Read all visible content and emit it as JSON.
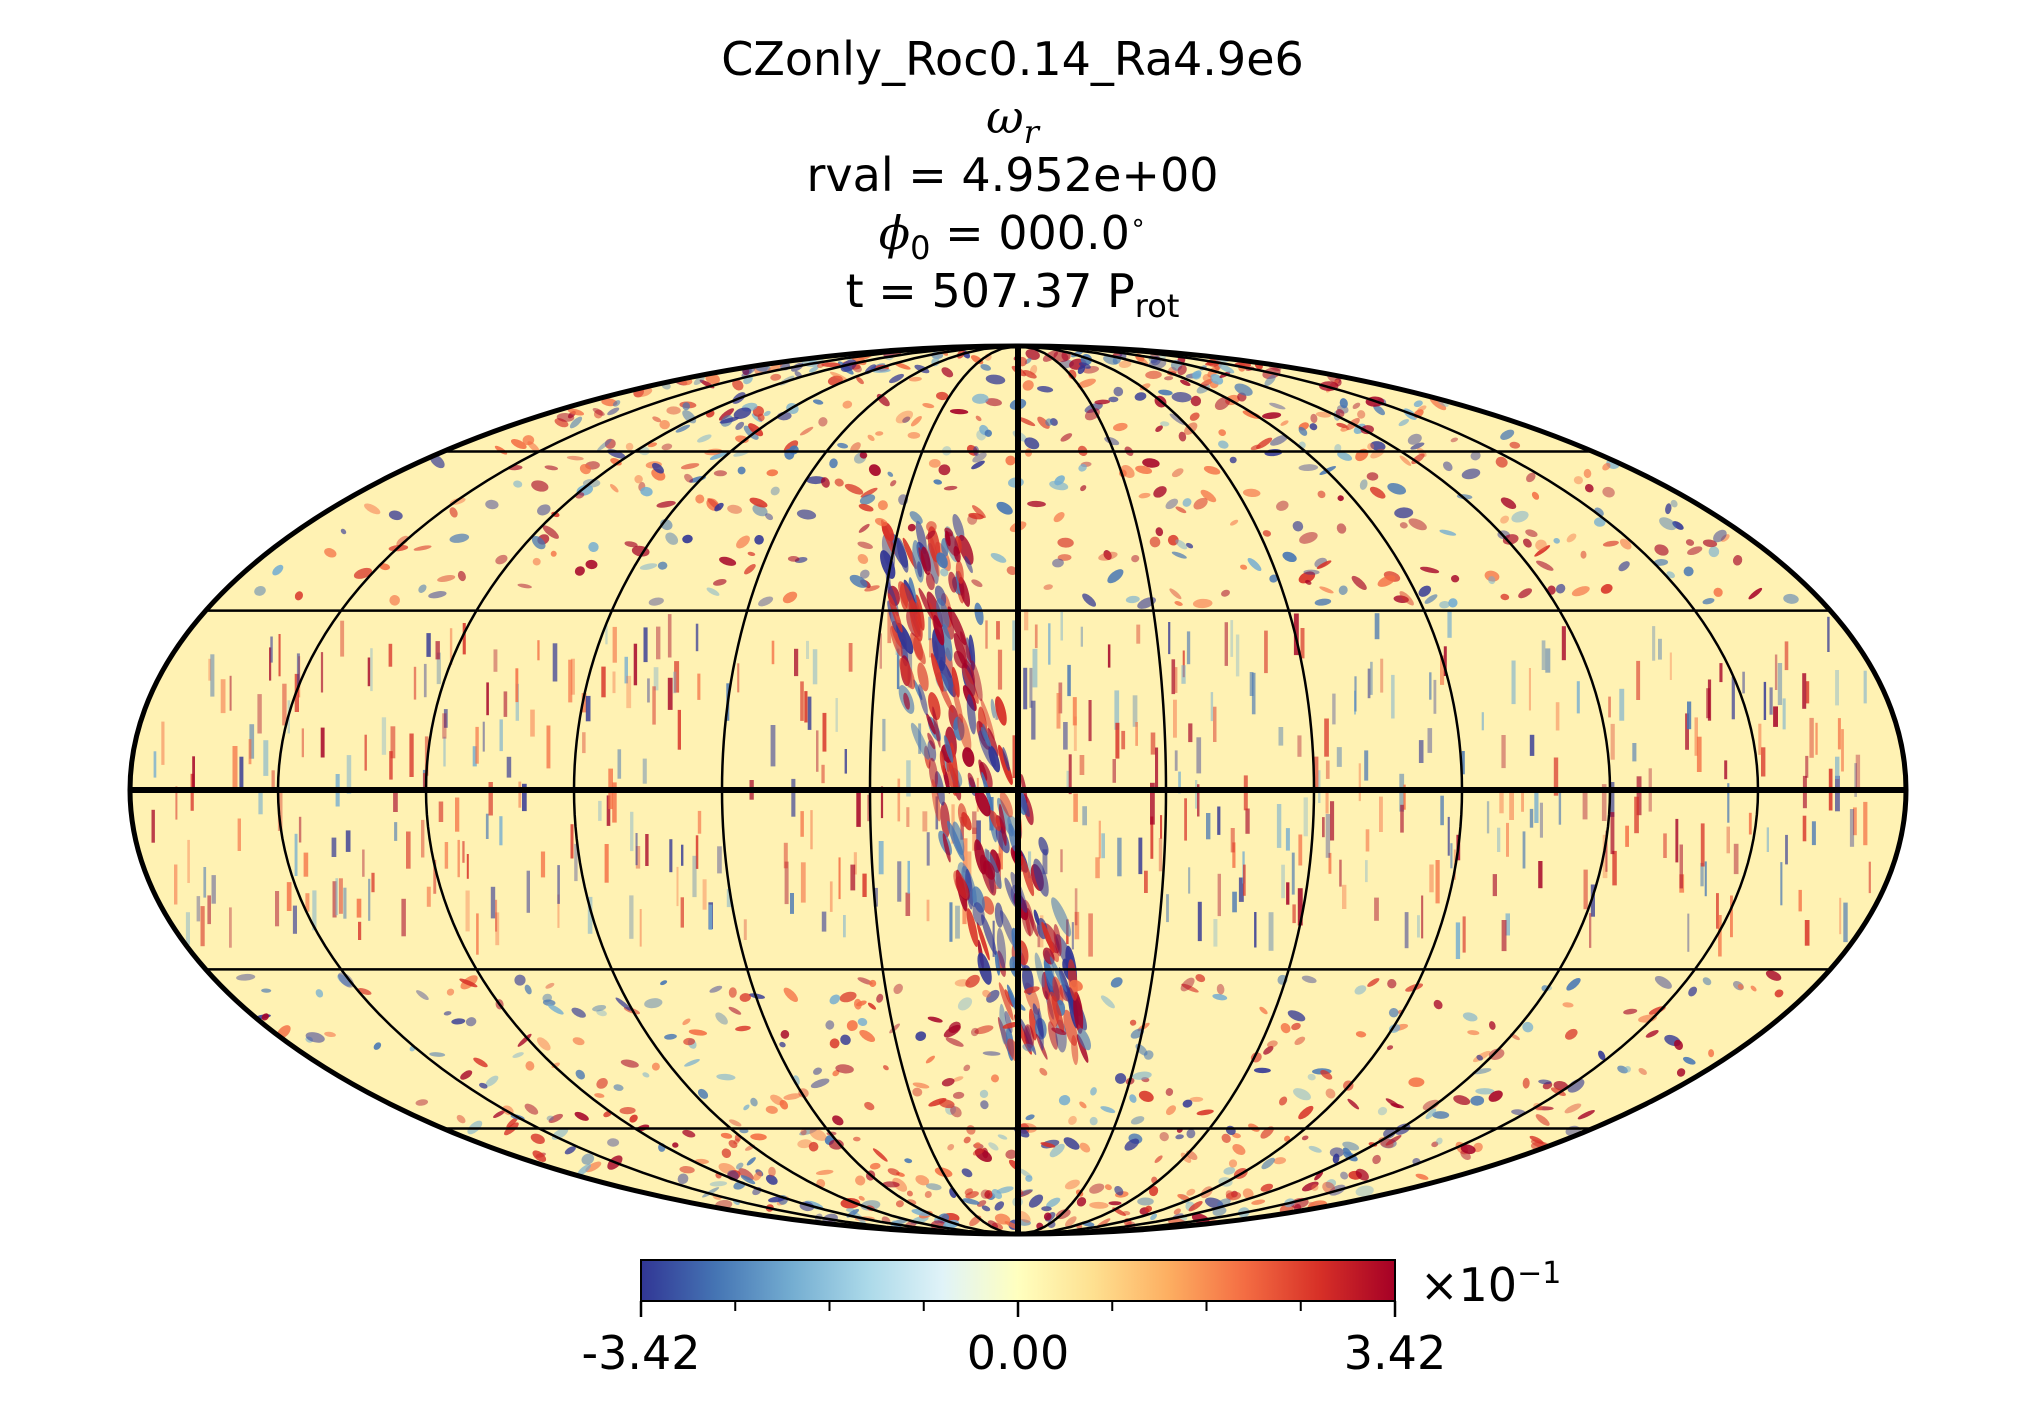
{
  "title": {
    "run_name": "CZonly_Roc0.14_Ra4.9e6",
    "quantity_symbol": "ω",
    "quantity_subscript": "r",
    "rval_text": "rval = 4.952e+00",
    "phi_symbol": "ϕ",
    "phi_subscript": "0",
    "phi_value_text": " = 000.0",
    "phi_unit": "∘",
    "time_prefix": "t = 507.37 P",
    "time_subscript": "rot"
  },
  "chart_data": {
    "type": "heatmap",
    "projection": "mollweide",
    "colormap": "RdYlBu_r",
    "colormap_stops": [
      "#313695",
      "#4575b4",
      "#74add1",
      "#abd9e9",
      "#e0f3f8",
      "#ffffbf",
      "#fee090",
      "#fdae61",
      "#f46d43",
      "#d73027",
      "#a50026"
    ],
    "value_range": [
      -3.42,
      3.42
    ],
    "value_scale_exponent": -1,
    "colorbar": {
      "tick_labels": [
        "-3.42",
        "0.00",
        "3.42"
      ],
      "exponent_prefix": "×10",
      "exponent_value": "−1",
      "minor_tick_count": 9
    },
    "graticule": {
      "latitudes_deg": [
        -60,
        -30,
        0,
        30,
        60
      ],
      "longitudes_deg": [
        -150,
        -120,
        -90,
        -60,
        -30,
        0,
        30,
        60,
        90,
        120,
        150
      ]
    }
  },
  "colors": {
    "grid_line": "#000000",
    "background": "#ffffff"
  }
}
